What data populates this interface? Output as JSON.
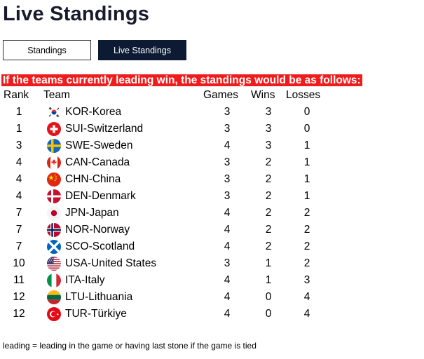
{
  "page": {
    "title": "Live Standings",
    "tabs": [
      {
        "label": "Standings",
        "active": false
      },
      {
        "label": "Live Standings",
        "active": true
      }
    ],
    "banner": "If the teams currently leading win, the standings would be as follows:",
    "footnote": "leading = leading in the game or having last stone if the game is tied"
  },
  "table": {
    "headers": {
      "rank": "Rank",
      "team": "Team",
      "games": "Games",
      "wins": "Wins",
      "losses": "Losses"
    },
    "rows": [
      {
        "rank": "1",
        "team": "KOR-Korea",
        "flag": "korea-flag-icon",
        "games": "3",
        "wins": "3",
        "losses": "0"
      },
      {
        "rank": "1",
        "team": "SUI-Switzerland",
        "flag": "switzerland-flag-icon",
        "games": "3",
        "wins": "3",
        "losses": "0"
      },
      {
        "rank": "3",
        "team": "SWE-Sweden",
        "flag": "sweden-flag-icon",
        "games": "4",
        "wins": "3",
        "losses": "1"
      },
      {
        "rank": "4",
        "team": "CAN-Canada",
        "flag": "canada-flag-icon",
        "games": "3",
        "wins": "2",
        "losses": "1"
      },
      {
        "rank": "4",
        "team": "CHN-China",
        "flag": "china-flag-icon",
        "games": "3",
        "wins": "2",
        "losses": "1"
      },
      {
        "rank": "4",
        "team": "DEN-Denmark",
        "flag": "denmark-flag-icon",
        "games": "3",
        "wins": "2",
        "losses": "1"
      },
      {
        "rank": "7",
        "team": "JPN-Japan",
        "flag": "japan-flag-icon",
        "games": "4",
        "wins": "2",
        "losses": "2"
      },
      {
        "rank": "7",
        "team": "NOR-Norway",
        "flag": "norway-flag-icon",
        "games": "4",
        "wins": "2",
        "losses": "2"
      },
      {
        "rank": "7",
        "team": "SCO-Scotland",
        "flag": "scotland-flag-icon",
        "games": "4",
        "wins": "2",
        "losses": "2"
      },
      {
        "rank": "10",
        "team": "USA-United States",
        "flag": "usa-flag-icon",
        "games": "3",
        "wins": "1",
        "losses": "2"
      },
      {
        "rank": "11",
        "team": "ITA-Italy",
        "flag": "italy-flag-icon",
        "games": "4",
        "wins": "1",
        "losses": "3"
      },
      {
        "rank": "12",
        "team": "LTU-Lithuania",
        "flag": "lithuania-flag-icon",
        "games": "4",
        "wins": "0",
        "losses": "4"
      },
      {
        "rank": "12",
        "team": "TUR-Türkiye",
        "flag": "turkiye-flag-icon",
        "games": "4",
        "wins": "0",
        "losses": "4"
      }
    ]
  },
  "colors": {
    "banner_bg": "#ee1c1c",
    "active_tab_bg": "#0c1a33",
    "title": "#1a1a2e"
  }
}
